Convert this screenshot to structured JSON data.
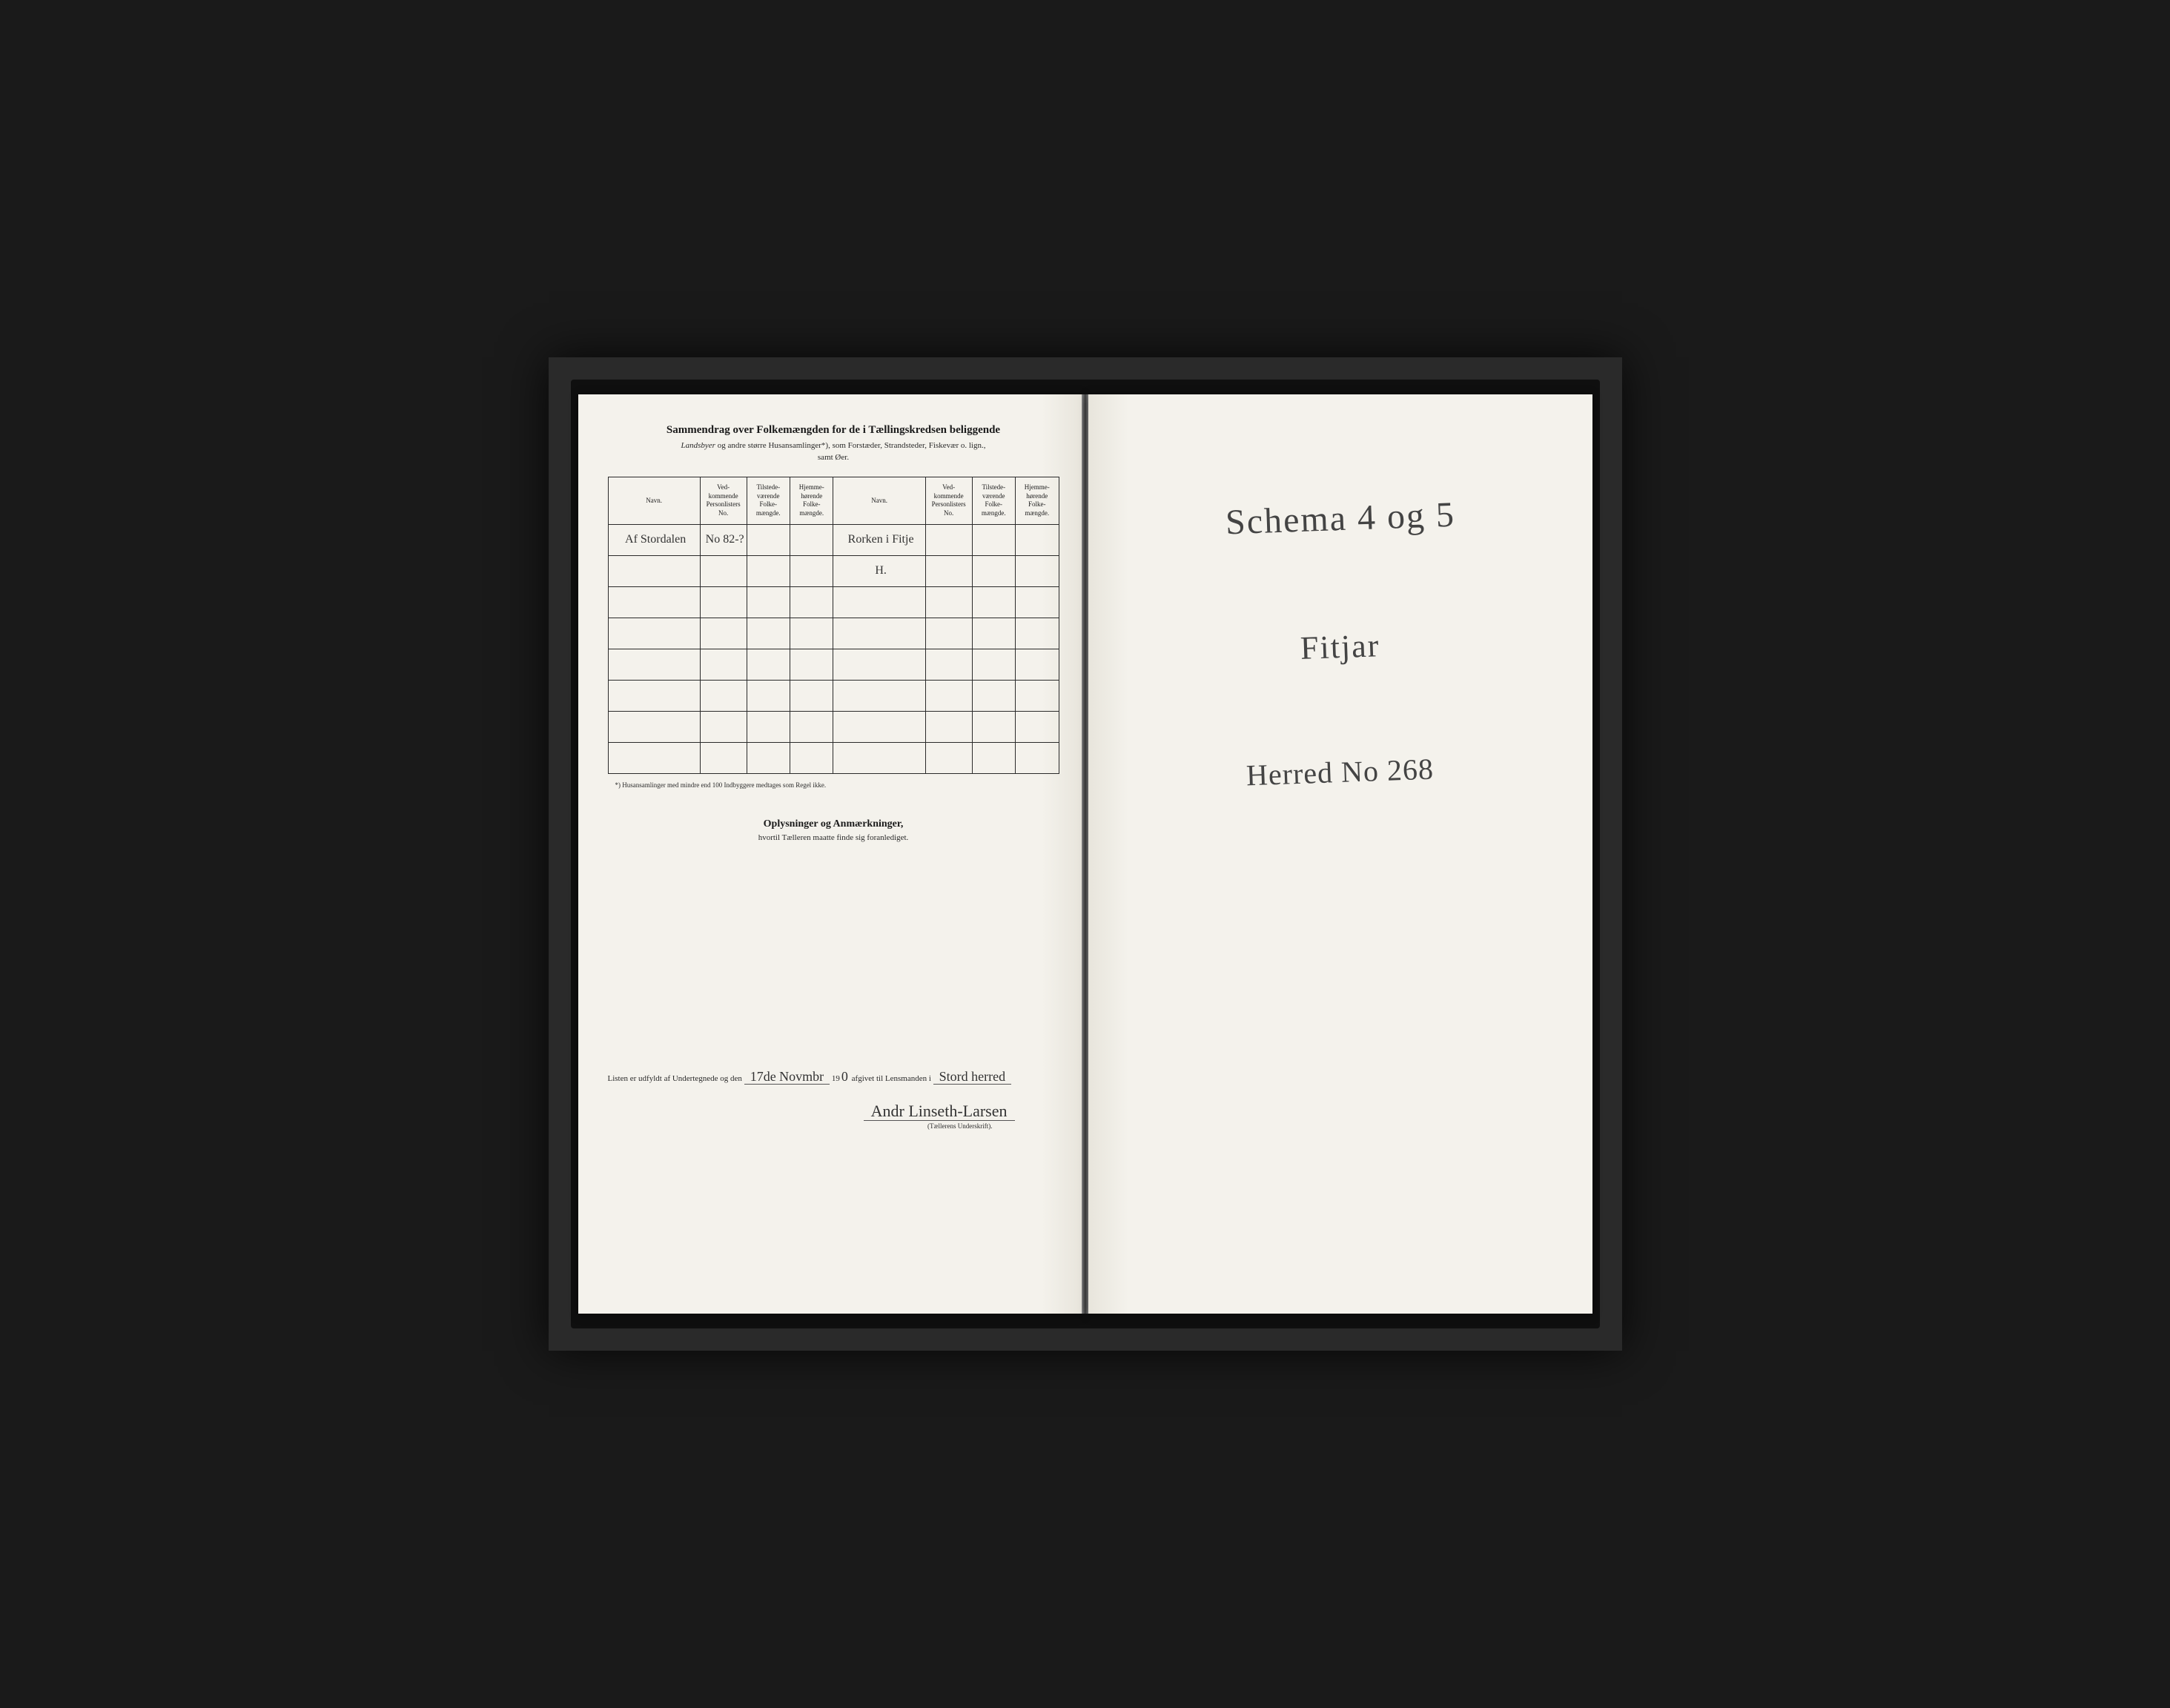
{
  "leftPage": {
    "title": "Sammendrag over Folkemængden for de i Tællingskredsen beliggende",
    "subtitle_italic": "Landsbyer",
    "subtitle_rest": " og andre større Husansamlinger*), som Forstæder, Strandsteder, Fiskevær o. lign.,",
    "subtitle_line2": "samt Øer.",
    "table": {
      "headers": {
        "navn": "Navn.",
        "personlister": "Ved-\nkommende\nPersonlisters\nNo.",
        "tilstede": "Tilstede-\nværende\nFolke-\nmængde.",
        "hjemme": "Hjemme-\nhørende\nFolke-\nmængde."
      },
      "rows": [
        {
          "navn1": "Af Stordalen",
          "no1": "No 82-?",
          "tilst1": "",
          "hjem1": "",
          "navn2": "Rorken i Fitje",
          "no2": "",
          "tilst2": "",
          "hjem2": ""
        },
        {
          "navn1": "",
          "no1": "",
          "tilst1": "",
          "hjem1": "",
          "navn2": "H.",
          "no2": "",
          "tilst2": "",
          "hjem2": ""
        },
        {
          "navn1": "",
          "no1": "",
          "tilst1": "",
          "hjem1": "",
          "navn2": "",
          "no2": "",
          "tilst2": "",
          "hjem2": ""
        },
        {
          "navn1": "",
          "no1": "",
          "tilst1": "",
          "hjem1": "",
          "navn2": "",
          "no2": "",
          "tilst2": "",
          "hjem2": ""
        },
        {
          "navn1": "",
          "no1": "",
          "tilst1": "",
          "hjem1": "",
          "navn2": "",
          "no2": "",
          "tilst2": "",
          "hjem2": ""
        },
        {
          "navn1": "",
          "no1": "",
          "tilst1": "",
          "hjem1": "",
          "navn2": "",
          "no2": "",
          "tilst2": "",
          "hjem2": ""
        },
        {
          "navn1": "",
          "no1": "",
          "tilst1": "",
          "hjem1": "",
          "navn2": "",
          "no2": "",
          "tilst2": "",
          "hjem2": ""
        },
        {
          "navn1": "",
          "no1": "",
          "tilst1": "",
          "hjem1": "",
          "navn2": "",
          "no2": "",
          "tilst2": "",
          "hjem2": ""
        }
      ]
    },
    "footnote": "*) Husansamlinger med mindre end 100 Indbyggere medtages som Regel ikke.",
    "section2_title": "Oplysninger og Anmærkninger,",
    "section2_sub": "hvortil Tælleren maatte finde sig foranlediget.",
    "bottom": {
      "prefix": "Listen er udfyldt af Undertegnede og den ",
      "date": "17de Novmbr",
      "mid": " 19",
      "year_suffix": "0",
      "mid2": " afgivet til Lensmanden i ",
      "place": "Stord herred",
      "signature": "Andr Linseth-Larsen",
      "sig_label": "(Tællerens Underskrift)."
    }
  },
  "rightPage": {
    "line1": "Schema 4 og 5",
    "line2": "Fitjar",
    "line3": "Herred No 268"
  },
  "colors": {
    "paper": "#f4f2ec",
    "ink": "#1a1a1a",
    "pencil": "#444444",
    "border": "#2a2a2a",
    "frame": "#1a1a1a"
  }
}
